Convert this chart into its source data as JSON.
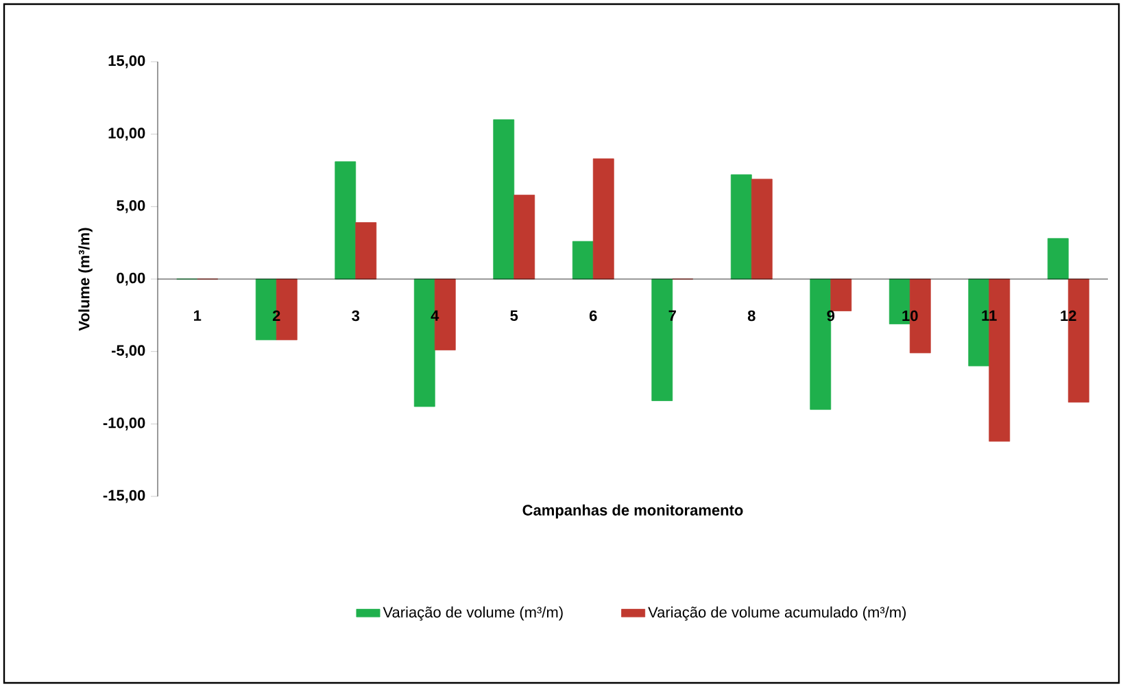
{
  "chart_data": {
    "type": "bar",
    "xlabel": "Campanhas de monitoramento",
    "ylabel": "Volume (m³/m)",
    "categories": [
      "1",
      "2",
      "3",
      "4",
      "5",
      "6",
      "7",
      "8",
      "9",
      "10",
      "11",
      "12"
    ],
    "series": [
      {
        "name": "Variação de volume (m³/m)",
        "color": "#1fb04c",
        "values": [
          0,
          -4.2,
          8.1,
          -8.8,
          11.0,
          2.6,
          -8.4,
          7.2,
          -9.0,
          -3.1,
          -6.0,
          2.8
        ]
      },
      {
        "name": "Variação de volume acumulado (m³/m)",
        "color": "#c0392f",
        "values": [
          0,
          -4.2,
          3.9,
          -4.9,
          5.8,
          8.3,
          0,
          6.9,
          -2.2,
          -5.1,
          -11.2,
          -8.5
        ]
      }
    ],
    "ylim": [
      -15,
      15
    ],
    "yticks": [
      {
        "value": -15,
        "label": "-15,00"
      },
      {
        "value": -10,
        "label": "-10,00"
      },
      {
        "value": -5,
        "label": "-5,00"
      },
      {
        "value": 0,
        "label": "0,00"
      },
      {
        "value": 5,
        "label": "5,00"
      },
      {
        "value": 10,
        "label": "10,00"
      },
      {
        "value": 15,
        "label": "15,00"
      }
    ],
    "grid": false,
    "legend": "bottom"
  }
}
